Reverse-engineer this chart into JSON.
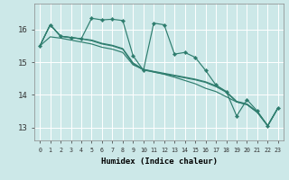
{
  "title": "",
  "xlabel": "Humidex (Indice chaleur)",
  "ylabel": "",
  "background_color": "#cce8e8",
  "grid_color": "#ffffff",
  "line_color": "#2e7d6e",
  "xlim": [
    -0.5,
    23.5
  ],
  "ylim": [
    12.6,
    16.8
  ],
  "yticks": [
    13,
    14,
    15,
    16
  ],
  "xticks": [
    0,
    1,
    2,
    3,
    4,
    5,
    6,
    7,
    8,
    9,
    10,
    11,
    12,
    13,
    14,
    15,
    16,
    17,
    18,
    19,
    20,
    21,
    22,
    23
  ],
  "series_zigzag": [
    15.5,
    16.15,
    15.8,
    15.75,
    15.72,
    16.35,
    16.3,
    16.32,
    16.28,
    15.2,
    14.75,
    16.2,
    16.15,
    15.25,
    15.3,
    15.15,
    14.75,
    14.3,
    14.1,
    13.35,
    13.85,
    13.5,
    13.05,
    13.6
  ],
  "series_lines": [
    [
      15.5,
      16.15,
      15.8,
      15.76,
      15.72,
      15.68,
      15.58,
      15.52,
      15.42,
      14.98,
      14.78,
      14.72,
      14.66,
      14.6,
      14.54,
      14.48,
      14.4,
      14.28,
      14.1,
      13.8,
      13.72,
      13.48,
      13.05,
      13.6
    ],
    [
      15.5,
      16.15,
      15.8,
      15.76,
      15.72,
      15.66,
      15.56,
      15.5,
      15.4,
      14.95,
      14.76,
      14.7,
      14.64,
      14.58,
      14.52,
      14.46,
      14.38,
      14.25,
      14.08,
      13.78,
      13.7,
      13.46,
      13.05,
      13.6
    ],
    [
      15.5,
      15.78,
      15.74,
      15.68,
      15.62,
      15.56,
      15.46,
      15.4,
      15.3,
      14.92,
      14.78,
      14.7,
      14.63,
      14.54,
      14.44,
      14.34,
      14.2,
      14.1,
      13.94,
      13.78,
      13.7,
      13.46,
      13.05,
      13.6
    ]
  ]
}
